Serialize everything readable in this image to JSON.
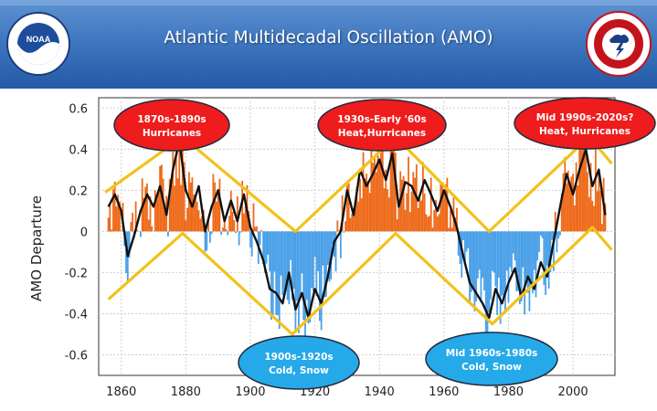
{
  "header": {
    "title": "Atlantic Multidecadal Oscillation (AMO)",
    "left_logo": {
      "icon": "noaa-logo",
      "center_text": "NOAA",
      "ring_text": "NATIONAL OCEANIC AND ATMOSPHERIC ADMINISTRATION",
      "bottom_text": "U.S. DEPARTMENT OF COMMERCE"
    },
    "right_logo": {
      "icon": "national-weather-service-logo",
      "ring_text": "NATIONAL WEATHER SERVICE"
    }
  },
  "colors": {
    "header": "#3a73bd",
    "positive": "#ee6a1a",
    "negative": "#4aa0e8",
    "smoothed": "#111111",
    "trend": "#f2c21a",
    "warm_label": "#ee1c1c",
    "cold_label": "#26a9e8"
  },
  "chart_data": {
    "type": "area",
    "title": "",
    "xlabel": "",
    "ylabel": "AMO Departure",
    "xlim": [
      1853,
      2013
    ],
    "ylim": [
      -0.7,
      0.65
    ],
    "x_ticks": [
      "1860",
      "1880",
      "1900",
      "1920",
      "1940",
      "1960",
      "1980",
      "2000"
    ],
    "y_ticks": [
      "0.6",
      "0.4",
      "0.2",
      "0",
      "-0.2",
      "-0.4",
      "-0.6"
    ],
    "grid": true,
    "smoothed_amo": {
      "x": [
        1856,
        1858,
        1860,
        1862,
        1864,
        1866,
        1868,
        1870,
        1872,
        1874,
        1876,
        1878,
        1880,
        1882,
        1884,
        1886,
        1888,
        1890,
        1892,
        1894,
        1896,
        1898,
        1900,
        1902,
        1904,
        1906,
        1908,
        1910,
        1912,
        1914,
        1916,
        1918,
        1920,
        1922,
        1924,
        1926,
        1928,
        1930,
        1932,
        1934,
        1936,
        1938,
        1940,
        1942,
        1944,
        1946,
        1948,
        1950,
        1952,
        1954,
        1956,
        1958,
        1960,
        1962,
        1964,
        1966,
        1968,
        1970,
        1972,
        1974,
        1976,
        1978,
        1980,
        1982,
        1984,
        1986,
        1988,
        1990,
        1992,
        1994,
        1996,
        1998,
        2000,
        2002,
        2004,
        2006,
        2008,
        2010
      ],
      "y": [
        0.12,
        0.18,
        0.1,
        -0.12,
        -0.02,
        0.1,
        0.18,
        0.12,
        0.22,
        0.08,
        0.3,
        0.44,
        0.2,
        0.12,
        0.22,
        0.0,
        0.12,
        0.2,
        0.05,
        0.15,
        0.05,
        0.18,
        0.02,
        -0.05,
        -0.14,
        -0.28,
        -0.3,
        -0.35,
        -0.2,
        -0.38,
        -0.3,
        -0.42,
        -0.28,
        -0.35,
        -0.22,
        -0.05,
        0.0,
        0.2,
        0.08,
        0.3,
        0.22,
        0.28,
        0.35,
        0.25,
        0.38,
        0.12,
        0.24,
        0.22,
        0.15,
        0.25,
        0.18,
        0.1,
        0.2,
        0.12,
        0.02,
        -0.12,
        -0.25,
        -0.3,
        -0.35,
        -0.42,
        -0.28,
        -0.35,
        -0.25,
        -0.18,
        -0.32,
        -0.22,
        -0.28,
        -0.15,
        -0.22,
        -0.05,
        0.12,
        0.28,
        0.18,
        0.3,
        0.4,
        0.22,
        0.3,
        0.08
      ]
    },
    "trend_lines": [
      {
        "name": "upper",
        "x": [
          1855,
          1879,
          1914,
          1945,
          1974,
          2005,
          2012
        ],
        "y": [
          0.19,
          0.46,
          0.0,
          0.46,
          0.0,
          0.46,
          0.33
        ]
      },
      {
        "name": "lower",
        "x": [
          1856,
          1879,
          1913,
          1945,
          1975,
          2006,
          2012
        ],
        "y": [
          -0.33,
          -0.01,
          -0.5,
          -0.01,
          -0.45,
          0.02,
          -0.09
        ]
      }
    ],
    "annotations": [
      {
        "kind": "warm",
        "line1": "1870s-1890s",
        "line2": "Hurricanes"
      },
      {
        "kind": "warm",
        "line1": "1930s-Early '60s",
        "line2": "Heat,Hurricanes"
      },
      {
        "kind": "warm",
        "line1": "Mid 1990s-2020s?",
        "line2": "Heat, Hurricanes"
      },
      {
        "kind": "cold",
        "line1": "1900s-1920s",
        "line2": "Cold, Snow"
      },
      {
        "kind": "cold",
        "line1": "Mid 1960s-1980s",
        "line2": "Cold, Snow"
      }
    ]
  }
}
